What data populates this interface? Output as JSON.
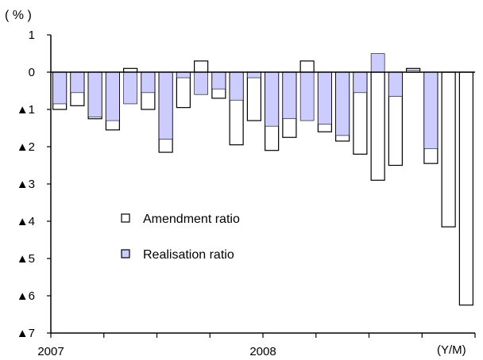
{
  "chart_data": {
    "type": "bar",
    "unit_label": "( % )",
    "x_unit_label": "(Y/M)",
    "x_tick_labels": [
      "2007",
      "2008"
    ],
    "y_tick_labels": [
      "1",
      "0",
      "▲1",
      "▲2",
      "▲3",
      "▲4",
      "▲5",
      "▲6",
      "▲7"
    ],
    "y_ticks": [
      1,
      0,
      -1,
      -2,
      -3,
      -4,
      -5,
      -6,
      -7
    ],
    "ylim": [
      -7,
      1
    ],
    "grid": false,
    "legend_position": "center-left",
    "overlay": true,
    "series": [
      {
        "name": "Amendment ratio",
        "color": "#ffffff",
        "values": [
          -1.0,
          -0.9,
          -1.25,
          -1.55,
          0.1,
          -1.0,
          -2.15,
          -0.95,
          0.3,
          -0.7,
          -1.95,
          -1.3,
          -2.1,
          -1.75,
          0.3,
          -1.6,
          -1.85,
          -2.2,
          -2.9,
          -2.5,
          0.1,
          -2.45,
          -4.15,
          -6.25
        ]
      },
      {
        "name": "Realisation ratio",
        "color": "#ccccff",
        "values": [
          -0.85,
          -0.55,
          -1.2,
          -1.3,
          -0.85,
          -0.55,
          -1.8,
          -0.15,
          -0.6,
          -0.45,
          -0.75,
          -0.15,
          -1.45,
          -1.25,
          -1.3,
          -1.4,
          -1.7,
          -0.55,
          0.5,
          -0.65,
          0.05,
          -2.05,
          0,
          0
        ]
      }
    ]
  }
}
